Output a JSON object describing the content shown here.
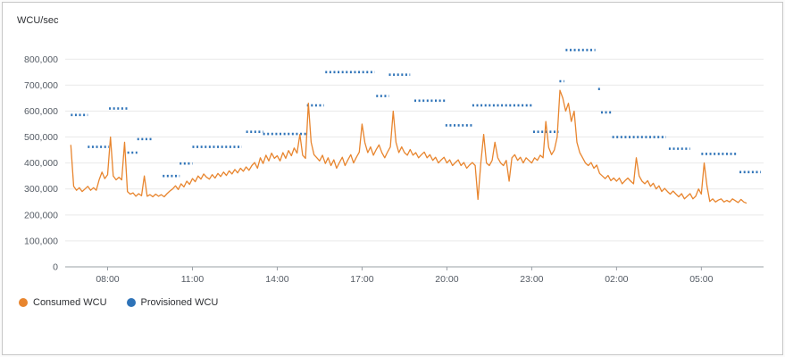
{
  "header": {
    "y_axis_title": "WCU/sec"
  },
  "legend": [
    {
      "label": "Consumed WCU",
      "color": "#e8852e"
    },
    {
      "label": "Provisioned WCU",
      "color": "#2e73b8"
    }
  ],
  "colors": {
    "consumed": "#e8852e",
    "provisioned": "#2e73b8",
    "grid": "#e9e9e9",
    "axis": "#9aa0a6",
    "tick_text": "#545b64"
  },
  "chart_data": {
    "type": "line",
    "title": "",
    "ylabel": "WCU/sec",
    "xlabel": "",
    "grid": true,
    "legend_position": "bottom-left",
    "ylim": [
      0,
      880000
    ],
    "x_range_hours": [
      6.5,
      31.2
    ],
    "value_scale": 1000,
    "y_ticks": [
      {
        "value": 0,
        "label": "0"
      },
      {
        "value": 100000,
        "label": "100,000"
      },
      {
        "value": 200000,
        "label": "200,000"
      },
      {
        "value": 300000,
        "label": "300,000"
      },
      {
        "value": 400000,
        "label": "400,000"
      },
      {
        "value": 500000,
        "label": "500,000"
      },
      {
        "value": 600000,
        "label": "600,000"
      },
      {
        "value": 700000,
        "label": "700,000"
      },
      {
        "value": 800000,
        "label": "800,000"
      }
    ],
    "x_ticks": [
      {
        "hour": 8,
        "label": "08:00"
      },
      {
        "hour": 11,
        "label": "11:00"
      },
      {
        "hour": 14,
        "label": "14:00"
      },
      {
        "hour": 17,
        "label": "17:00"
      },
      {
        "hour": 20,
        "label": "20:00"
      },
      {
        "hour": 23,
        "label": "23:00"
      },
      {
        "hour": 26,
        "label": "02:00"
      },
      {
        "hour": 29,
        "label": "05:00"
      }
    ],
    "series": [
      {
        "name": "Consumed WCU",
        "style": "line",
        "color": "#e8852e",
        "start_hour": 6.7,
        "step_hour": 0.1,
        "values_k": [
          470,
          310,
          295,
          305,
          290,
          300,
          310,
          295,
          305,
          295,
          335,
          365,
          340,
          355,
          500,
          350,
          335,
          345,
          335,
          480,
          290,
          280,
          285,
          272,
          282,
          274,
          350,
          272,
          278,
          270,
          280,
          272,
          278,
          270,
          282,
          292,
          300,
          312,
          298,
          320,
          308,
          330,
          318,
          340,
          328,
          350,
          338,
          358,
          345,
          338,
          355,
          342,
          360,
          348,
          365,
          352,
          370,
          358,
          375,
          362,
          380,
          368,
          385,
          372,
          390,
          402,
          380,
          420,
          398,
          430,
          408,
          438,
          418,
          428,
          408,
          440,
          418,
          448,
          428,
          458,
          438,
          510,
          430,
          418,
          630,
          480,
          432,
          420,
          408,
          430,
          398,
          420,
          390,
          412,
          380,
          402,
          422,
          390,
          412,
          432,
          400,
          422,
          442,
          550,
          478,
          440,
          462,
          430,
          452,
          470,
          440,
          420,
          442,
          462,
          600,
          480,
          440,
          462,
          440,
          430,
          452,
          430,
          440,
          420,
          432,
          442,
          420,
          432,
          410,
          422,
          400,
          412,
          422,
          400,
          412,
          390,
          402,
          412,
          390,
          402,
          380,
          392,
          402,
          390,
          260,
          400,
          510,
          400,
          390,
          410,
          480,
          420,
          400,
          390,
          410,
          330,
          420,
          432,
          410,
          422,
          400,
          420,
          410,
          400,
          420,
          410,
          430,
          420,
          560,
          460,
          432,
          450,
          500,
          680,
          650,
          600,
          630,
          560,
          600,
          480,
          440,
          420,
          400,
          390,
          402,
          380,
          392,
          360,
          350,
          340,
          352,
          332,
          342,
          330,
          342,
          320,
          332,
          342,
          330,
          320,
          420,
          350,
          330,
          320,
          332,
          310,
          322,
          300,
          312,
          290,
          302,
          290,
          280,
          292,
          280,
          270,
          282,
          262,
          272,
          282,
          262,
          272,
          300,
          280,
          400,
          310,
          252,
          262,
          250,
          257,
          262,
          250,
          256,
          250,
          262,
          255,
          248,
          260,
          250,
          245
        ]
      },
      {
        "name": "Provisioned WCU",
        "style": "dotted-segments",
        "color": "#2e73b8",
        "segments_k": [
          [
            6.7,
            7.3,
            585
          ],
          [
            7.3,
            8.05,
            462
          ],
          [
            8.05,
            8.7,
            610
          ],
          [
            8.7,
            9.05,
            440
          ],
          [
            9.05,
            9.6,
            492
          ],
          [
            9.95,
            10.55,
            350
          ],
          [
            10.55,
            11.0,
            398
          ],
          [
            11.0,
            12.75,
            462
          ],
          [
            12.9,
            13.5,
            520
          ],
          [
            13.5,
            15.05,
            512
          ],
          [
            15.05,
            15.65,
            622
          ],
          [
            15.7,
            17.45,
            750
          ],
          [
            17.5,
            17.95,
            658
          ],
          [
            17.95,
            18.7,
            740
          ],
          [
            18.85,
            19.95,
            640
          ],
          [
            19.95,
            20.9,
            545
          ],
          [
            20.9,
            23.0,
            622
          ],
          [
            23.05,
            23.95,
            520
          ],
          [
            23.98,
            24.15,
            715
          ],
          [
            24.2,
            25.25,
            835
          ],
          [
            25.35,
            25.45,
            685
          ],
          [
            25.45,
            25.85,
            595
          ],
          [
            25.85,
            27.75,
            500
          ],
          [
            27.85,
            28.6,
            455
          ],
          [
            29.0,
            30.3,
            435
          ],
          [
            30.35,
            31.1,
            365
          ]
        ]
      }
    ]
  }
}
